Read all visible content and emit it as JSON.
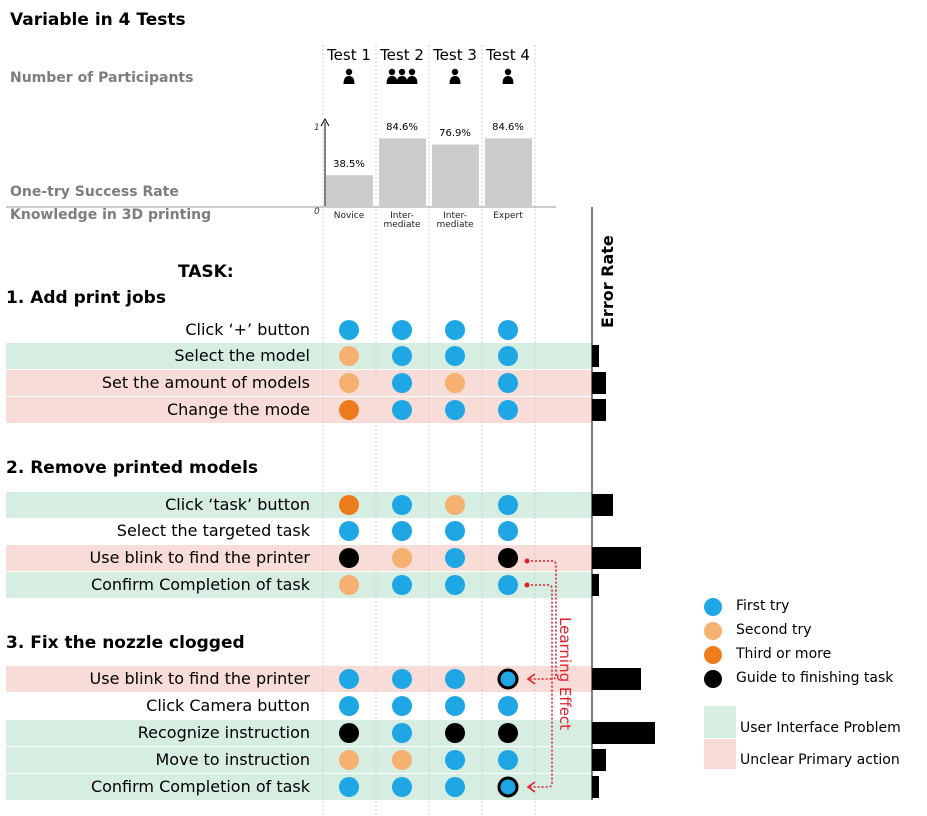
{
  "title": "Variable in 4 Tests",
  "labels": {
    "participants": "Number of Participants",
    "success_rate": "One-try Success Rate",
    "knowledge": "Knowledge in 3D printing",
    "task": "TASK:",
    "error_rate": "Error Rate",
    "learning_effect": "Learning Effect",
    "y_top": "1",
    "y_zero": "0"
  },
  "tests": [
    {
      "name": "Test 1",
      "participants": 1,
      "success_rate": "38.5%",
      "success_value": 0.385,
      "knowledge": "Novice"
    },
    {
      "name": "Test 2",
      "participants": 3,
      "success_rate": "84.6%",
      "success_value": 0.846,
      "knowledge": "Inter-\nmediate"
    },
    {
      "name": "Test 3",
      "participants": 1,
      "success_rate": "76.9%",
      "success_value": 0.769,
      "knowledge": "Inter-\nmediate"
    },
    {
      "name": "Test 4",
      "participants": 1,
      "success_rate": "84.6%",
      "success_value": 0.846,
      "knowledge": "Expert"
    }
  ],
  "sections": [
    {
      "title": "1. Add print jobs",
      "tasks": [
        {
          "label": "Click ‘+’ button",
          "type": "none",
          "results": [
            "first",
            "first",
            "first",
            "first"
          ],
          "error": 0
        },
        {
          "label": "Select the model",
          "type": "ui",
          "results": [
            "second",
            "first",
            "first",
            "first"
          ],
          "error": 1
        },
        {
          "label": "Set the amount of models",
          "type": "unclear",
          "results": [
            "second",
            "first",
            "second",
            "first"
          ],
          "error": 2
        },
        {
          "label": "Change the mode",
          "type": "unclear",
          "results": [
            "third",
            "first",
            "first",
            "first"
          ],
          "error": 2
        }
      ]
    },
    {
      "title": "2. Remove printed models",
      "tasks": [
        {
          "label": "Click ‘task’ button",
          "type": "ui",
          "results": [
            "third",
            "first",
            "second",
            "first"
          ],
          "error": 3
        },
        {
          "label": "Select the targeted task",
          "type": "none",
          "results": [
            "first",
            "first",
            "first",
            "first"
          ],
          "error": 0
        },
        {
          "label": "Use blink to find the printer",
          "type": "unclear",
          "results": [
            "guide",
            "second",
            "first",
            "guide"
          ],
          "error": 7
        },
        {
          "label": "Confirm Completion of task",
          "type": "ui",
          "results": [
            "second",
            "first",
            "first",
            "first"
          ],
          "error": 1
        }
      ]
    },
    {
      "title": "3. Fix the nozzle clogged",
      "tasks": [
        {
          "label": "Use blink to find the printer",
          "type": "unclear",
          "results": [
            "first",
            "first",
            "first",
            "first-ring"
          ],
          "error": 7
        },
        {
          "label": "Click Camera button",
          "type": "none",
          "results": [
            "first",
            "first",
            "first",
            "first"
          ],
          "error": 0
        },
        {
          "label": "Recognize instruction",
          "type": "ui",
          "results": [
            "guide",
            "first",
            "guide",
            "guide"
          ],
          "error": 9
        },
        {
          "label": "Move to instruction",
          "type": "ui",
          "results": [
            "second",
            "second",
            "first",
            "first"
          ],
          "error": 2
        },
        {
          "label": "Confirm Completion of task",
          "type": "ui",
          "results": [
            "first",
            "first",
            "first",
            "first-ring"
          ],
          "error": 1
        }
      ]
    }
  ],
  "legend": {
    "first": "First try",
    "second": "Second try",
    "third": "Third or more",
    "guide": "Guide to finishing task",
    "ui": "User Interface Problem",
    "unclear": "Unclear Primary action"
  },
  "colors": {
    "first": "#1ea7e4",
    "second": "#f6b06f",
    "third": "#ec7c1c",
    "guide": "#000000",
    "ui": "#d6ede1",
    "unclear": "#f8dcd7",
    "bar": "#cccccc",
    "learning": "#e0202a"
  },
  "chart_data": {
    "type": "bar",
    "title": "One-try Success Rate",
    "categories": [
      "Test 1",
      "Test 2",
      "Test 3",
      "Test 4"
    ],
    "values": [
      0.385,
      0.846,
      0.769,
      0.846
    ],
    "value_labels": [
      "38.5%",
      "84.6%",
      "76.9%",
      "84.6%"
    ],
    "ylim": [
      0,
      1
    ]
  }
}
